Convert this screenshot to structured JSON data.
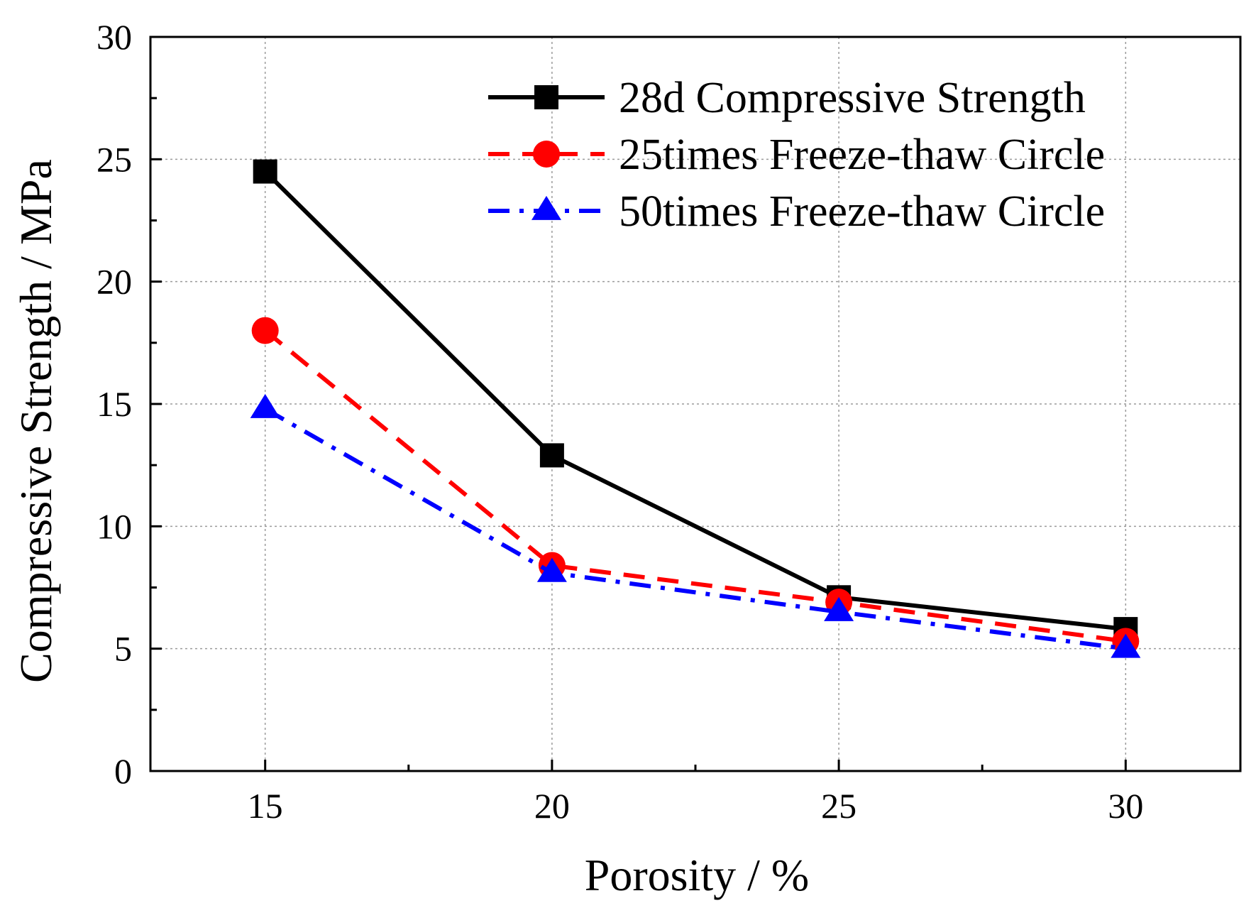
{
  "chart_data": {
    "type": "line",
    "title": "",
    "xlabel": "Porosity / %",
    "ylabel": "Compressive Strength / MPa",
    "xlim": [
      13,
      32
    ],
    "ylim": [
      0,
      30
    ],
    "x_ticks": [
      15,
      20,
      25,
      30
    ],
    "x_tick_labels": [
      "15",
      "20",
      "25",
      "30"
    ],
    "y_ticks": [
      0,
      5,
      10,
      15,
      20,
      25,
      30
    ],
    "y_tick_labels": [
      "0",
      "5",
      "10",
      "15",
      "20",
      "25",
      "30"
    ],
    "x_minor_ticks": [
      17.5,
      22.5,
      27.5
    ],
    "y_minor_ticks": [
      2.5,
      7.5,
      12.5,
      17.5,
      22.5,
      27.5
    ],
    "grid": true,
    "legend_position": "top-right",
    "x": [
      15,
      20,
      25,
      30
    ],
    "series": [
      {
        "name": "28d Compressive Strength",
        "values": [
          24.5,
          12.9,
          7.1,
          5.8
        ],
        "color": "#000000",
        "line_style": "solid",
        "marker": "square"
      },
      {
        "name": "25times Freeze-thaw Circle",
        "values": [
          18.0,
          8.4,
          6.9,
          5.3
        ],
        "color": "#ff0000",
        "line_style": "dashed",
        "marker": "circle"
      },
      {
        "name": "50times Freeze-thaw Circle",
        "values": [
          14.8,
          8.1,
          6.5,
          5.0
        ],
        "color": "#0000ff",
        "line_style": "dash-dot",
        "marker": "triangle"
      }
    ]
  }
}
